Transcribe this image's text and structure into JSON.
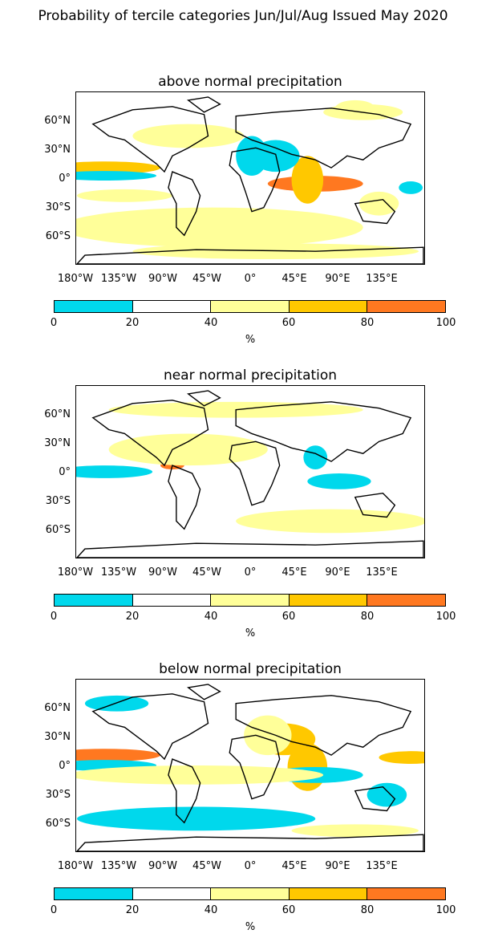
{
  "title": "Probability of tercile categories Jun/Jul/Aug Issued May 2020",
  "lat_ticks": [
    "60°N",
    "30°N",
    "0°",
    "30°S",
    "60°S"
  ],
  "lon_ticks": [
    "180°W",
    "135°W",
    "90°W",
    "45°W",
    "0°",
    "45°E",
    "90°E",
    "135°E"
  ],
  "colorbar": {
    "ticks": [
      "0",
      "20",
      "40",
      "60",
      "80",
      "100"
    ],
    "unit": "%",
    "colors": [
      "#00d8ec",
      "#ffffff",
      "#ffff99",
      "#ffc800",
      "#ff7820"
    ]
  },
  "panels": [
    {
      "title": "above normal precipitation"
    },
    {
      "title": "near normal precipitation"
    },
    {
      "title": "below normal precipitation"
    }
  ]
}
